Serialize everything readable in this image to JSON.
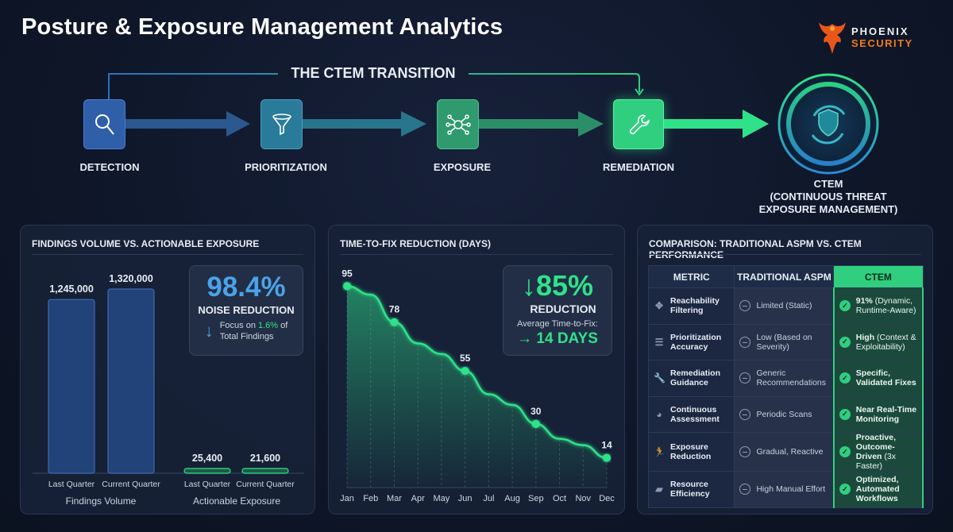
{
  "title": "Posture & Exposure Management Analytics",
  "logo": {
    "line1": "PHOENIX",
    "line2": "SECURITY"
  },
  "pipeline": {
    "transition_label": "THE CTEM TRANSITION",
    "steps": [
      {
        "label": "DETECTION",
        "icon": "magnifier-icon",
        "color": "#2f5fa8"
      },
      {
        "label": "PRIORITIZATION",
        "icon": "funnel-icon",
        "color": "#2a7a9a"
      },
      {
        "label": "EXPOSURE",
        "icon": "network-icon",
        "color": "#2f9a6e"
      },
      {
        "label": "REMEDIATION",
        "icon": "wrench-icon",
        "color": "#2fcf7f"
      }
    ],
    "final": {
      "line1": "CTEM",
      "line2": "(CONTINUOUS THREAT",
      "line3": "EXPOSURE MANAGEMENT)",
      "icon": "shield-cycle-icon"
    }
  },
  "chart_data": [
    {
      "type": "bar",
      "title": "FINDINGS VOLUME VS. ACTIONABLE EXPOSURE",
      "groups": [
        "Findings Volume",
        "Actionable Exposure"
      ],
      "categories": [
        "Last Quarter",
        "Current Quarter",
        "Last Quarter",
        "Current Quarter"
      ],
      "values": [
        1245000,
        1320000,
        25400,
        21600
      ],
      "value_labels": [
        "1,245,000",
        "1,320,000",
        "25,400",
        "21,600"
      ],
      "colors": [
        "#2a4f8f",
        "#2a4f8f",
        "#2fcf7f",
        "#2fcf7f"
      ],
      "ylim": [
        0,
        1320000
      ],
      "grid": false
    },
    {
      "type": "area",
      "title": "TIME-TO-FIX REDUCTION (DAYS)",
      "categories": [
        "Jan",
        "Feb",
        "Mar",
        "Apr",
        "May",
        "Jun",
        "Jul",
        "Aug",
        "Sep",
        "Oct",
        "Nov",
        "Dec"
      ],
      "values": [
        95,
        91,
        78,
        68,
        63,
        55,
        44,
        39,
        30,
        23,
        20,
        14
      ],
      "data_labels": {
        "0": "95",
        "2": "78",
        "5": "55",
        "8": "30",
        "11": "14"
      },
      "ylim": [
        0,
        100
      ],
      "color": "#2fe28a",
      "grid": "vertical-dashed"
    }
  ],
  "noise_stat": {
    "value": "98.4%",
    "label": "NOISE REDUCTION",
    "focus_prefix": "Focus on ",
    "focus_pct": "1.6%",
    "focus_suffix": " of",
    "focus_line2": "Total Findings"
  },
  "ttf_stat": {
    "arrow": "↓",
    "value": "85%",
    "label": "REDUCTION",
    "avg_label": "Average Time-to-Fix:",
    "avg_value": "→ 14 DAYS"
  },
  "comparison": {
    "title": "COMPARISON: TRADITIONAL ASPM VS. CTEM PERFORMANCE",
    "headers": [
      "METRIC",
      "TRADITIONAL ASPM",
      "CTEM"
    ],
    "rows": [
      {
        "icon": "move-icon",
        "metric": "Reachability Filtering",
        "traditional": "Limited (Static)",
        "ctem_bold": "91%",
        "ctem_rest": " (Dynamic, Runtime-Aware)"
      },
      {
        "icon": "list-icon",
        "metric": "Prioritization Accuracy",
        "traditional": "Low (Based on Severity)",
        "ctem_bold": "High",
        "ctem_rest": " (Context & Exploitability)"
      },
      {
        "icon": "wrench-icon",
        "metric": "Remediation Guidance",
        "traditional": "Generic Recommendations",
        "ctem_bold": "Specific, Validated Fixes",
        "ctem_rest": ""
      },
      {
        "icon": "gauge-icon",
        "metric": "Continuous Assessment",
        "traditional": "Periodic Scans",
        "ctem_bold": "Near Real-Time Monitoring",
        "ctem_rest": ""
      },
      {
        "icon": "runner-icon",
        "metric": "Exposure Reduction",
        "traditional": "Gradual, Reactive",
        "ctem_bold": "Proactive, Outcome-Driven",
        "ctem_rest": " (3x Faster)"
      },
      {
        "icon": "briefcase-icon",
        "metric": "Resource Efficiency",
        "traditional": "High Manual Effort",
        "ctem_bold": "Optimized, Automated Workflows",
        "ctem_rest": ""
      }
    ]
  }
}
